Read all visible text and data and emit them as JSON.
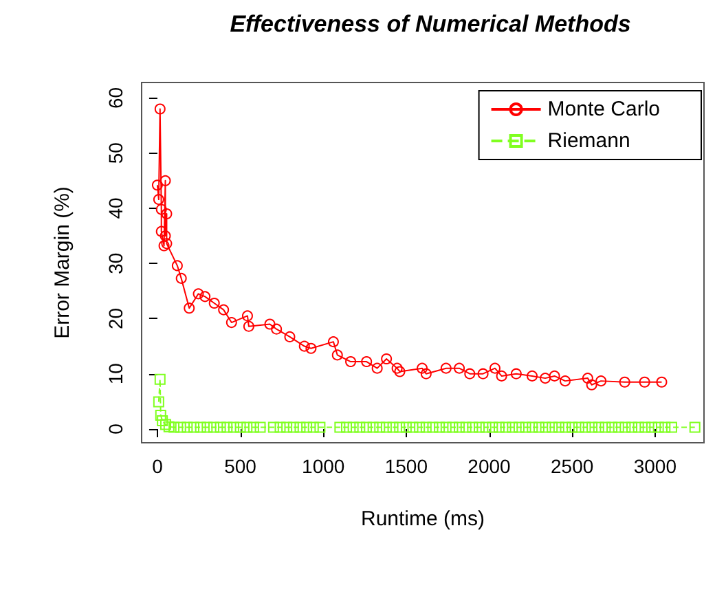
{
  "chart_data": {
    "type": "line",
    "title": "Effectiveness of Numerical Methods",
    "xlabel": "Runtime (ms)",
    "ylabel": "Error Margin (%)",
    "xlim": [
      -95,
      3295
    ],
    "ylim": [
      -2.5,
      62.8
    ],
    "xticks": [
      0,
      500,
      1000,
      1500,
      2000,
      2500,
      3000
    ],
    "yticks": [
      0,
      10,
      20,
      30,
      40,
      50,
      60
    ],
    "grid": false,
    "legend": "top right",
    "series": [
      {
        "name": "Monte Carlo",
        "color": "#ff0000",
        "marker": "circle",
        "line_style": "solid",
        "x": [
          0,
          8,
          16,
          24,
          24,
          40,
          48,
          48,
          56,
          56,
          120,
          144,
          192,
          247,
          287,
          343,
          399,
          447,
          543,
          551,
          678,
          718,
          798,
          886,
          926,
          1061,
          1085,
          1165,
          1261,
          1325,
          1381,
          1445,
          1461,
          1596,
          1620,
          1740,
          1820,
          1883,
          1963,
          2035,
          2075,
          2163,
          2259,
          2338,
          2394,
          2458,
          2594,
          2618,
          2674,
          2817,
          2937,
          3040
        ],
        "values": [
          44.2,
          41.6,
          58,
          39.8,
          35.8,
          33.2,
          45,
          35,
          39,
          33.6,
          29.6,
          27.3,
          21.9,
          24.5,
          24,
          22.8,
          21.6,
          19.3,
          20.5,
          18.6,
          19,
          18.1,
          16.7,
          15,
          14.6,
          15.8,
          13.4,
          12.2,
          12.2,
          11,
          12.7,
          11,
          10.4,
          11,
          10,
          11,
          11,
          10,
          10,
          11,
          9.6,
          10,
          9.6,
          9.2,
          9.6,
          8.7,
          9.2,
          8,
          8.7,
          8.5,
          8.5,
          8.5
        ]
      },
      {
        "name": "Riemann",
        "color": "#80ff20",
        "marker": "square",
        "line_style": "dashed",
        "x": [
          8,
          16,
          20,
          30,
          50,
          70,
          100,
          140,
          180,
          220,
          260,
          300,
          340,
          380,
          420,
          460,
          500,
          540,
          580,
          620,
          700,
          740,
          780,
          820,
          860,
          900,
          940,
          980,
          1100,
          1140,
          1180,
          1220,
          1260,
          1300,
          1340,
          1380,
          1420,
          1460,
          1500,
          1540,
          1580,
          1620,
          1660,
          1700,
          1740,
          1780,
          1820,
          1860,
          1900,
          1940,
          1980,
          2020,
          2060,
          2100,
          2140,
          2180,
          2220,
          2260,
          2300,
          2340,
          2380,
          2420,
          2460,
          2500,
          2540,
          2580,
          2620,
          2660,
          2700,
          2740,
          2780,
          2820,
          2860,
          2900,
          2940,
          2980,
          3020,
          3060,
          3100,
          3240
        ],
        "values": [
          4.9,
          9,
          2.5,
          1.5,
          0.8,
          0.4,
          0.3,
          0.3,
          0.3,
          0.3,
          0.3,
          0.3,
          0.3,
          0.3,
          0.3,
          0.3,
          0.3,
          0.3,
          0.3,
          0.3,
          0.3,
          0.3,
          0.3,
          0.3,
          0.3,
          0.3,
          0.3,
          0.3,
          0.3,
          0.3,
          0.3,
          0.3,
          0.3,
          0.3,
          0.3,
          0.3,
          0.3,
          0.3,
          0.3,
          0.3,
          0.3,
          0.3,
          0.3,
          0.3,
          0.3,
          0.3,
          0.3,
          0.3,
          0.3,
          0.3,
          0.3,
          0.3,
          0.3,
          0.3,
          0.3,
          0.3,
          0.3,
          0.3,
          0.3,
          0.3,
          0.3,
          0.3,
          0.3,
          0.3,
          0.3,
          0.3,
          0.3,
          0.3,
          0.3,
          0.3,
          0.3,
          0.3,
          0.3,
          0.3,
          0.3,
          0.3,
          0.3,
          0.3,
          0.3,
          0.3
        ]
      }
    ]
  }
}
